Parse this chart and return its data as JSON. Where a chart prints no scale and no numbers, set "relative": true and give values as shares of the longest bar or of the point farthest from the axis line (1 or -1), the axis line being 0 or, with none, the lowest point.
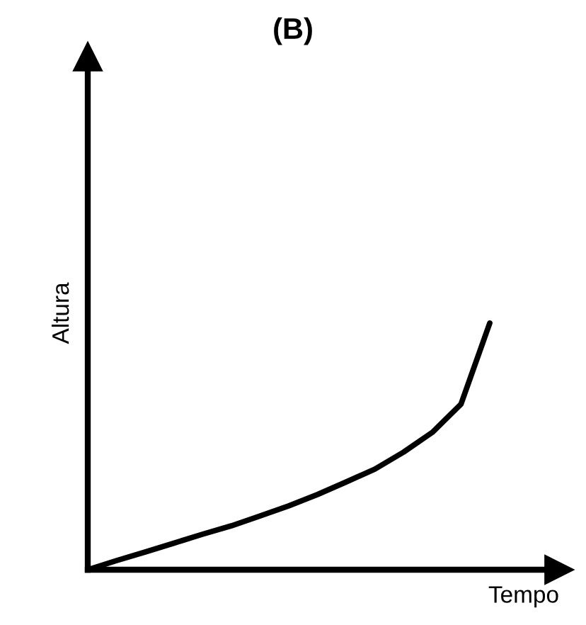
{
  "chart_data": {
    "type": "line",
    "title": "(B)",
    "xlabel": "Tempo",
    "ylabel": "Altura",
    "relative": true,
    "categories": [
      null,
      null,
      null,
      null,
      null,
      null,
      null,
      null,
      null,
      null,
      null,
      null,
      null,
      null,
      null
    ],
    "series": [
      {
        "color": "#000000",
        "values": [
          0,
          0.037,
          0.072,
          0.108,
          0.144,
          0.178,
          0.218,
          0.259,
          0.305,
          0.356,
          0.408,
          0.477,
          0.557,
          0.672,
          1.0
        ]
      }
    ],
    "marker": "none",
    "line_style": "solid"
  }
}
